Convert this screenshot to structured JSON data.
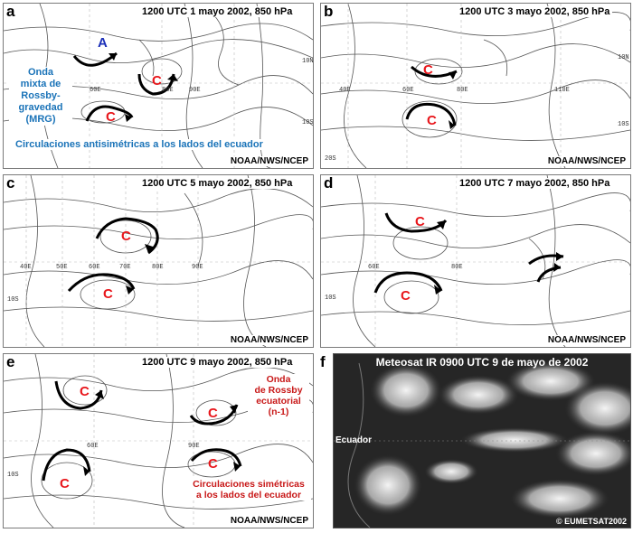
{
  "panels": {
    "a": {
      "label": "a",
      "title": "1200 UTC 1 mayo 2002, 850 hPa",
      "credit": "NOAA/NWS/NCEP",
      "ticks": [
        "60E",
        "80E",
        "90E",
        "10N",
        "10S"
      ],
      "centers": [
        "A",
        "C",
        "C"
      ],
      "note": "Onda\nmixta de\nRossby-\ngravedad\n(MRG)",
      "banner": "Circulaciones antisimétricas a los lados del ecuador"
    },
    "b": {
      "label": "b",
      "title": "1200 UTC 3 mayo 2002, 850 hPa",
      "credit": "NOAA/NWS/NCEP",
      "ticks": [
        "40E",
        "60E",
        "80E",
        "110E",
        "10N",
        "10S",
        "20S"
      ],
      "centers": [
        "C",
        "C"
      ]
    },
    "c": {
      "label": "c",
      "title": "1200 UTC 5 mayo 2002, 850 hPa",
      "credit": "NOAA/NWS/NCEP",
      "ticks": [
        "40E",
        "50E",
        "60E",
        "70E",
        "80E",
        "90E",
        "10S"
      ],
      "centers": [
        "C",
        "C"
      ]
    },
    "d": {
      "label": "d",
      "title": "1200 UTC 7 mayo 2002, 850 hPa",
      "credit": "NOAA/NWS/NCEP",
      "ticks": [
        "60E",
        "80E",
        "10S"
      ],
      "centers": [
        "C",
        "C"
      ]
    },
    "e": {
      "label": "e",
      "title": "1200 UTC 9 mayo 2002, 850 hPa",
      "credit": "NOAA/NWS/NCEP",
      "ticks": [
        "60E",
        "90E",
        "10S"
      ],
      "centers": [
        "C",
        "C",
        "C",
        "C"
      ],
      "note_rossby": "Onda\nde Rossby\necuatorial\n(n-1)",
      "note_sym": "Circulaciones simétricas\na los lados del ecuador"
    },
    "f": {
      "label": "f",
      "title": "Meteosat IR 0900 UTC 9 de mayo de 2002",
      "equator_label": "Ecuador",
      "credit": "© EUMETSAT2002"
    }
  },
  "colors": {
    "cyclone": "#e8161b",
    "anticyclone": "#1b2fb8",
    "note_blue": "#1a73b8",
    "note_red": "#c81818",
    "arrow": "#000000"
  }
}
